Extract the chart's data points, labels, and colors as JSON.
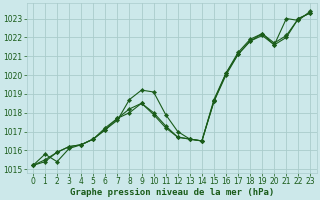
{
  "xlabel": "Graphe pression niveau de la mer (hPa)",
  "xlim": [
    -0.5,
    23.5
  ],
  "ylim": [
    1014.8,
    1023.8
  ],
  "yticks": [
    1015,
    1016,
    1017,
    1018,
    1019,
    1020,
    1021,
    1022,
    1023
  ],
  "xticks": [
    0,
    1,
    2,
    3,
    4,
    5,
    6,
    7,
    8,
    9,
    10,
    11,
    12,
    13,
    14,
    15,
    16,
    17,
    18,
    19,
    20,
    21,
    22,
    23
  ],
  "bg_color": "#cce8ea",
  "grid_color": "#aacccc",
  "line_color": "#1a5c1a",
  "series1_y": [
    1015.2,
    1015.8,
    1015.4,
    1016.1,
    1016.3,
    1016.6,
    1017.1,
    1017.6,
    1018.7,
    1019.2,
    1019.1,
    1017.9,
    1017.0,
    1016.6,
    1016.5,
    1018.6,
    1020.1,
    1021.1,
    1021.8,
    1022.1,
    1021.6,
    1023.0,
    1022.9,
    1023.4
  ],
  "series2_y": [
    1015.2,
    1015.5,
    1015.9,
    1016.2,
    1016.3,
    1016.6,
    1017.2,
    1017.7,
    1018.2,
    1018.5,
    1018.0,
    1017.3,
    1016.7,
    1016.6,
    1016.5,
    1018.7,
    1020.1,
    1021.2,
    1021.9,
    1022.2,
    1021.7,
    1022.1,
    1023.0,
    1023.3
  ],
  "series3_y": [
    1015.2,
    1015.4,
    1015.9,
    1016.2,
    1016.3,
    1016.6,
    1017.1,
    1017.7,
    1018.0,
    1018.5,
    1017.9,
    1017.2,
    1016.7,
    1016.6,
    1016.5,
    1018.6,
    1020.0,
    1021.1,
    1021.8,
    1022.2,
    1021.6,
    1022.0,
    1023.0,
    1023.3
  ],
  "tick_fontsize": 5.5,
  "label_fontsize": 6.5,
  "label_fontweight": "bold",
  "marker_size": 2.2,
  "line_width": 0.8
}
